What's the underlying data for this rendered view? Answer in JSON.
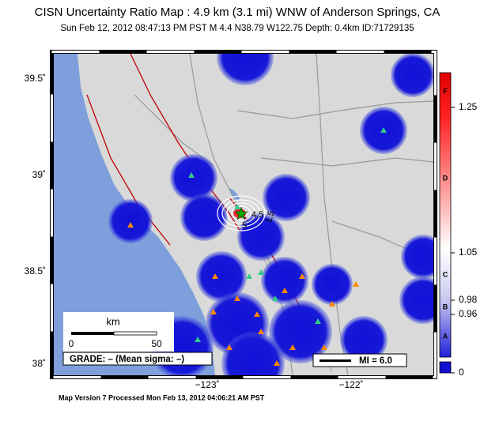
{
  "header": {
    "title": "CISN Uncertainty Ratio Map : 4.9 km (3.1 mi) WNW of Anderson Springs, CA",
    "subtitle": "Sun Feb 12, 2012 08:47:13 PM PST   M 4.4   N38.79 W122.75   Depth: 0.4km   ID:71729135"
  },
  "map": {
    "lat_labels": [
      "39.5˚",
      "39˚",
      "38.5˚",
      "38˚"
    ],
    "lon_labels": [
      "−123˚",
      "−122˚"
    ],
    "contour_labels": [
      "4.5",
      "5",
      "1.5"
    ],
    "scale_bar": {
      "unit": "km",
      "start": "0",
      "end": "50"
    },
    "grade": "GRADE: – (Mean sigma: –)",
    "magnitude": "MI = 6.0"
  },
  "colorbar": {
    "ratio_labels": [
      "1.25",
      "1.05",
      "0.98",
      "0.96",
      "0"
    ],
    "grade_labels": [
      "F",
      "D",
      "C",
      "B",
      "A"
    ]
  },
  "footer": "Map Version 7 Processed Mon Feb 13, 2012 04:06:21 AM PST"
}
